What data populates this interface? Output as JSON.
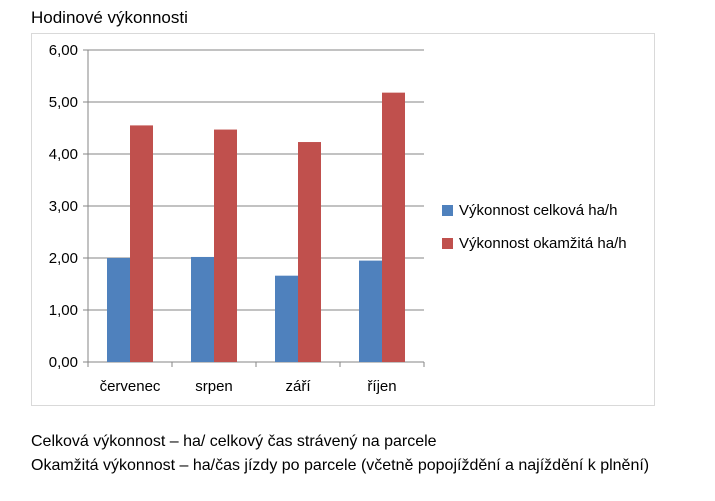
{
  "chart_data": {
    "type": "bar",
    "title": "Hodinové výkonnosti",
    "categories": [
      "červenec",
      "srpen",
      "září",
      "říjen"
    ],
    "series": [
      {
        "name": "Výkonnost celková ha/h",
        "color": "#4f81bd",
        "values": [
          2.0,
          2.02,
          1.66,
          1.95
        ]
      },
      {
        "name": "Výkonnost okamžitá ha/h",
        "color": "#c0504d",
        "values": [
          4.55,
          4.47,
          4.23,
          5.18
        ]
      }
    ],
    "ylim": [
      0,
      6
    ],
    "yticks": [
      "0,00",
      "1,00",
      "2,00",
      "3,00",
      "4,00",
      "5,00",
      "6,00"
    ],
    "grid": true,
    "legend": "right"
  },
  "notes": [
    "Celková výkonnost – ha/ celkový čas strávený na parcele",
    "Okamžitá výkonnost – ha/čas jízdy po parcele (včetně popojíždění a najíždění k plnění)"
  ]
}
